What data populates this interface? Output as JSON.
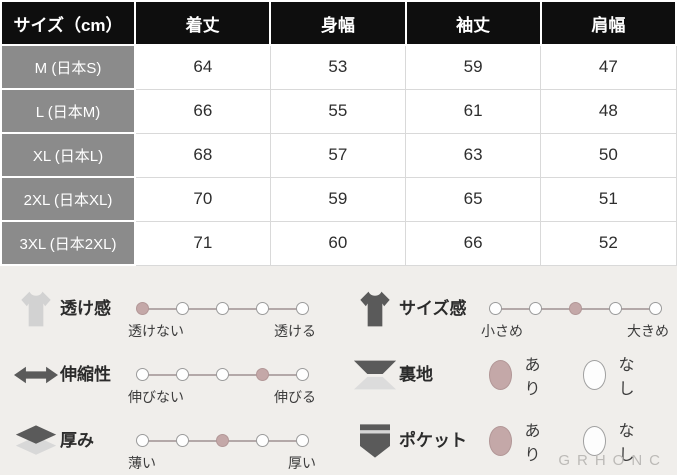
{
  "table": {
    "header": [
      "サイズ（cm）",
      "着丈",
      "身幅",
      "袖丈",
      "肩幅"
    ],
    "rows": [
      {
        "label": "M (日本S)",
        "values": [
          "64",
          "53",
          "59",
          "47"
        ]
      },
      {
        "label": "L (日本M)",
        "values": [
          "66",
          "55",
          "61",
          "48"
        ]
      },
      {
        "label": "XL (日本L)",
        "values": [
          "68",
          "57",
          "63",
          "50"
        ]
      },
      {
        "label": "2XL (日本XL)",
        "values": [
          "70",
          "59",
          "65",
          "51"
        ]
      },
      {
        "label": "3XL (日本2XL)",
        "values": [
          "71",
          "60",
          "66",
          "52"
        ]
      }
    ]
  },
  "attributes": {
    "left": [
      {
        "icon": "tshirt-light-icon",
        "label": "透け感",
        "type": "scale",
        "dots": 5,
        "filled": 1,
        "min_label": "透けない",
        "max_label": "透ける"
      },
      {
        "icon": "stretch-arrows-icon",
        "label": "伸縮性",
        "type": "scale",
        "dots": 5,
        "filled": 4,
        "min_label": "伸びない",
        "max_label": "伸びる"
      },
      {
        "icon": "layers-icon",
        "label": "厚み",
        "type": "scale",
        "dots": 5,
        "filled": 3,
        "min_label": "薄い",
        "max_label": "厚い"
      }
    ],
    "right": [
      {
        "icon": "tshirt-dark-icon",
        "label": "サイズ感",
        "type": "scale",
        "dots": 5,
        "filled": 3,
        "min_label": "小さめ",
        "max_label": "大きめ"
      },
      {
        "icon": "lining-icon",
        "label": "裏地",
        "type": "binary",
        "options": [
          "あり",
          "なし"
        ],
        "selected": "あり"
      },
      {
        "icon": "pocket-icon",
        "label": "ポケット",
        "type": "binary",
        "options": [
          "あり",
          "なし"
        ],
        "selected": "あり"
      }
    ]
  },
  "watermark": "GRHONC",
  "colors": {
    "accent_fill": "#c4a8a8",
    "header_bg": "#0e0e0e",
    "row_header_bg": "#8b8b8b",
    "page_bg": "#f0eeeb",
    "grid_line": "#d9d9d9"
  }
}
